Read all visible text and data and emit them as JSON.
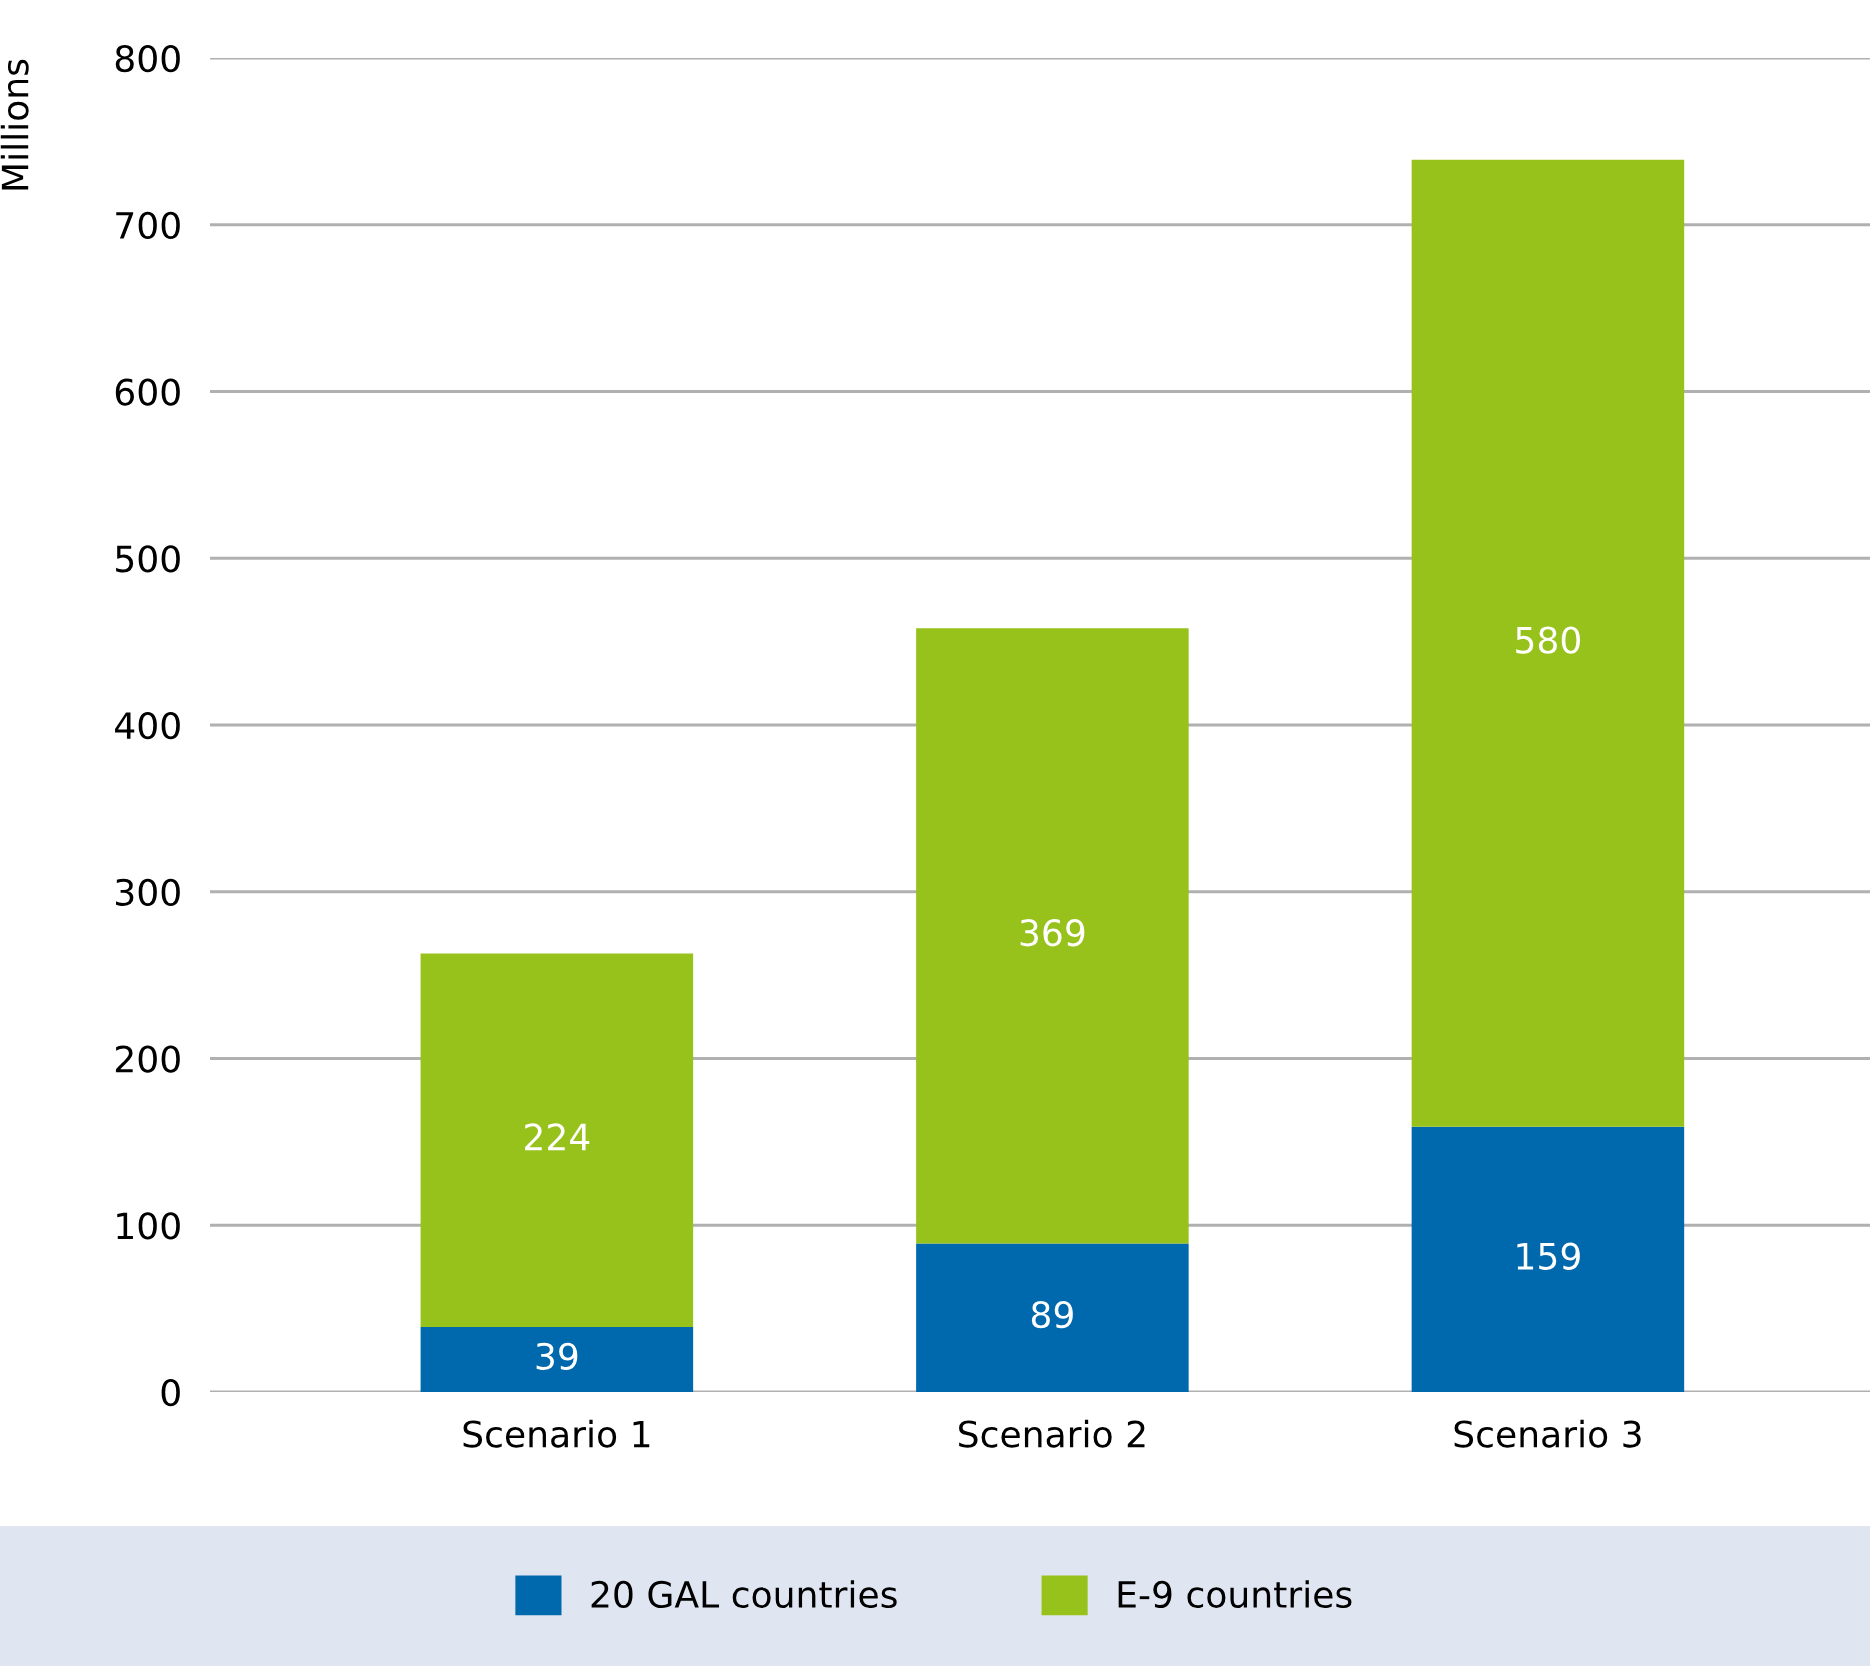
{
  "chart_data": {
    "type": "bar",
    "stacked": true,
    "ylabel": "Millions",
    "categories": [
      "Scenario 1",
      "Scenario 2",
      "Scenario 3"
    ],
    "series": [
      {
        "name": "20 GAL countries",
        "color": "#0068ad",
        "values": [
          39,
          89,
          159
        ]
      },
      {
        "name": "E-9 countries",
        "color": "#97c21b",
        "values": [
          224,
          369,
          580
        ]
      }
    ],
    "ylim": [
      0,
      800
    ],
    "yticks": [
      0,
      100,
      200,
      300,
      400,
      500,
      600,
      700,
      800
    ],
    "grid": "y",
    "legend": "bottom",
    "data_labels": true
  }
}
